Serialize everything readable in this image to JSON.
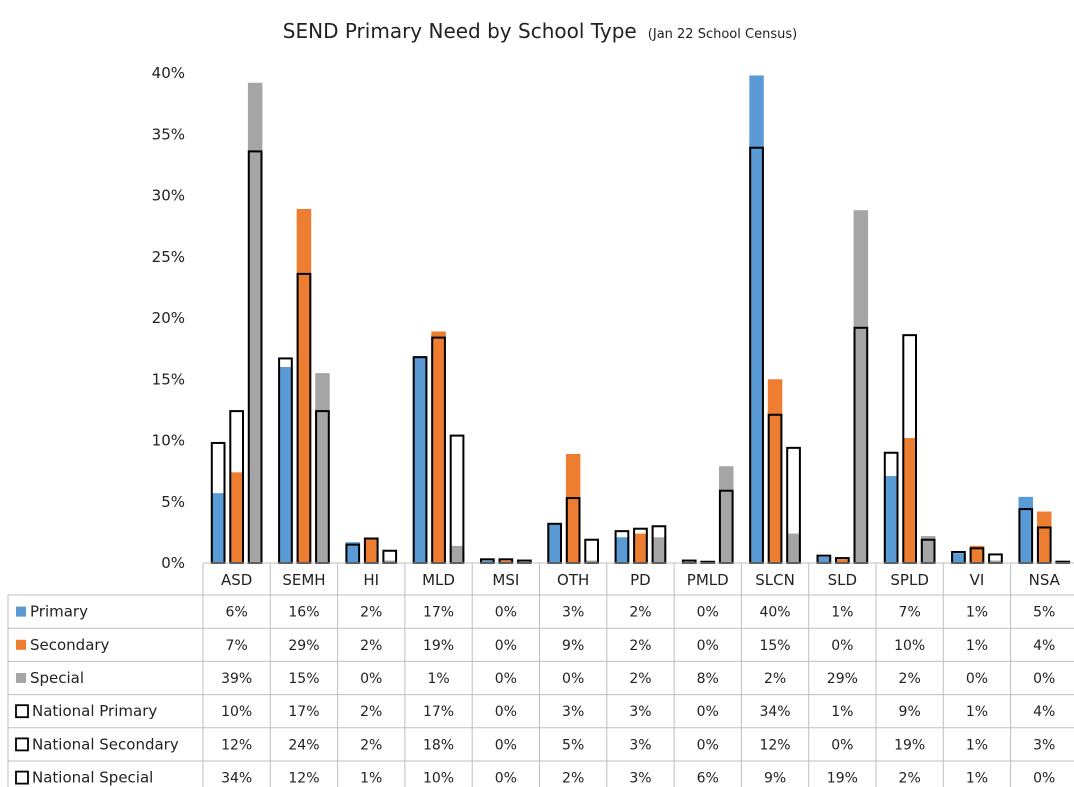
{
  "chart_data": {
    "type": "bar",
    "title": "SEND Primary Need by School Type",
    "subtitle": "(Jan 22 School Census)",
    "categories": [
      "ASD",
      "SEMH",
      "HI",
      "MLD",
      "MSI",
      "OTH",
      "PD",
      "PMLD",
      "SLCN",
      "SLD",
      "SPLD",
      "VI",
      "NSA"
    ],
    "yticks": [
      "0%",
      "5%",
      "10%",
      "15%",
      "20%",
      "25%",
      "30%",
      "35%",
      "40%"
    ],
    "ylim": [
      0,
      40
    ],
    "grid": false,
    "legend": "table-left",
    "series": [
      {
        "name": "Primary",
        "style": "filled",
        "color": "#5b9bd5",
        "values": [
          5.7,
          16.0,
          1.7,
          16.9,
          0.2,
          3.2,
          2.1,
          0.1,
          39.8,
          0.5,
          7.1,
          0.8,
          5.4
        ],
        "labels": [
          "6%",
          "16%",
          "2%",
          "17%",
          "0%",
          "3%",
          "2%",
          "0%",
          "40%",
          "1%",
          "7%",
          "1%",
          "5%"
        ]
      },
      {
        "name": "Secondary",
        "style": "filled",
        "color": "#ed7d31",
        "values": [
          7.4,
          28.9,
          2.0,
          18.9,
          0.2,
          8.9,
          2.4,
          0.1,
          15.0,
          0.3,
          10.2,
          1.4,
          4.2
        ],
        "labels": [
          "7%",
          "29%",
          "2%",
          "19%",
          "0%",
          "9%",
          "2%",
          "0%",
          "15%",
          "0%",
          "10%",
          "1%",
          "4%"
        ]
      },
      {
        "name": "Special",
        "style": "filled",
        "color": "#a5a5a5",
        "values": [
          39.2,
          15.5,
          0.2,
          1.4,
          0.1,
          0.2,
          2.1,
          7.9,
          2.4,
          28.8,
          2.2,
          0.2,
          0.2
        ],
        "labels": [
          "39%",
          "15%",
          "0%",
          "1%",
          "0%",
          "0%",
          "2%",
          "8%",
          "2%",
          "29%",
          "2%",
          "0%",
          "0%"
        ]
      },
      {
        "name": "National Primary",
        "style": "outline",
        "group": 0,
        "values": [
          9.8,
          16.7,
          1.5,
          16.8,
          0.3,
          3.2,
          2.6,
          0.2,
          33.9,
          0.6,
          9.0,
          0.9,
          4.4
        ],
        "labels": [
          "10%",
          "17%",
          "2%",
          "17%",
          "0%",
          "3%",
          "3%",
          "0%",
          "34%",
          "1%",
          "9%",
          "1%",
          "4%"
        ]
      },
      {
        "name": "National Secondary",
        "style": "outline",
        "group": 1,
        "values": [
          12.4,
          23.6,
          2.0,
          18.4,
          0.3,
          5.3,
          2.8,
          0.1,
          12.1,
          0.4,
          18.6,
          1.2,
          2.9
        ],
        "labels": [
          "12%",
          "24%",
          "2%",
          "18%",
          "0%",
          "5%",
          "3%",
          "0%",
          "12%",
          "0%",
          "19%",
          "1%",
          "3%"
        ]
      },
      {
        "name": "National Special",
        "style": "outline",
        "group": 2,
        "values": [
          33.6,
          12.4,
          1.0,
          10.4,
          0.2,
          1.9,
          3.0,
          5.9,
          9.4,
          19.2,
          1.9,
          0.7,
          0.1
        ],
        "labels": [
          "34%",
          "12%",
          "1%",
          "10%",
          "0%",
          "2%",
          "3%",
          "6%",
          "9%",
          "19%",
          "2%",
          "1%",
          "0%"
        ]
      }
    ]
  }
}
